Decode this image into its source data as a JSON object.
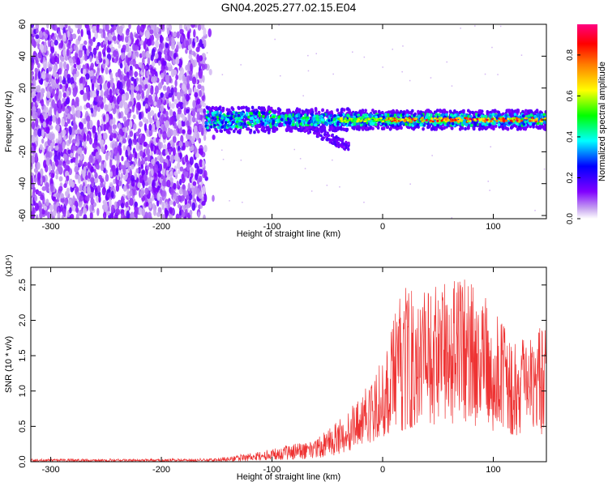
{
  "title": "GN04.2025.277.02.15.E04",
  "chart_data": [
    {
      "type": "heatmap",
      "xlabel": "Height of straight line (km)",
      "ylabel": "Frequency (Hz)",
      "xlim": [
        -318,
        148
      ],
      "ylim": [
        -62,
        60
      ],
      "xticks": [
        -300,
        -200,
        -100,
        0,
        100
      ],
      "xtick_labels": [
        "-300",
        "-200",
        "-100",
        "0",
        "100"
      ],
      "yticks": [
        -60,
        -40,
        -20,
        0,
        20,
        40,
        60
      ],
      "ytick_labels": [
        "-60",
        "-40",
        "-20",
        "0",
        "20",
        "40",
        "60"
      ],
      "colorbar": {
        "label": "Normalized spectral amplitude",
        "range": [
          0,
          0.95
        ],
        "ticks": [
          0.0,
          0.2,
          0.4,
          0.6,
          0.8
        ],
        "tick_labels": [
          "0.0",
          "0.2",
          "0.4",
          "0.6",
          "0.8"
        ],
        "colormap": [
          "#ffffff",
          "#8000ff",
          "#0000ff",
          "#00ffff",
          "#00ff00",
          "#ffff00",
          "#ff8000",
          "#ff0000",
          "#ff0080"
        ]
      },
      "regions": [
        {
          "name": "broadband noise",
          "x": [
            -318,
            -160
          ],
          "y": [
            -62,
            60
          ],
          "amplitude": [
            0.05,
            0.15
          ]
        },
        {
          "name": "signal band",
          "x": [
            -160,
            148
          ],
          "y": [
            -8,
            8
          ],
          "center_frequency": 0,
          "amplitude": [
            0.2,
            0.9
          ]
        }
      ],
      "grid": false
    },
    {
      "type": "line",
      "xlabel": "Height of straight line (km)",
      "ylabel": "SNR (10 * v/v)",
      "y_multiplier": "(x10⁴)",
      "xlim": [
        -318,
        148
      ],
      "ylim": [
        0,
        2.75
      ],
      "xticks": [
        -300,
        -200,
        -100,
        0,
        100
      ],
      "xtick_labels": [
        "-300",
        "-200",
        "-100",
        "0",
        "100"
      ],
      "yticks": [
        0,
        0.5,
        1.0,
        1.5,
        2.0,
        2.5
      ],
      "ytick_labels": [
        "0.0",
        "0.5",
        "1.0",
        "1.5",
        "2.0",
        "2.5"
      ],
      "series_color": "#ee3333",
      "envelope": {
        "x": [
          -318,
          -200,
          -150,
          -120,
          -100,
          -80,
          -60,
          -40,
          -20,
          0,
          20,
          40,
          60,
          75,
          90,
          110,
          130,
          148
        ],
        "upper": [
          0.04,
          0.04,
          0.05,
          0.12,
          0.18,
          0.25,
          0.35,
          0.6,
          0.9,
          1.5,
          2.55,
          2.4,
          2.6,
          2.7,
          2.4,
          1.9,
          1.7,
          2.05
        ],
        "lower": [
          0.0,
          0.0,
          0.0,
          0.01,
          0.02,
          0.03,
          0.05,
          0.1,
          0.2,
          0.35,
          0.45,
          0.5,
          0.55,
          0.5,
          0.45,
          0.4,
          0.35,
          0.4
        ]
      },
      "grid": false
    }
  ]
}
